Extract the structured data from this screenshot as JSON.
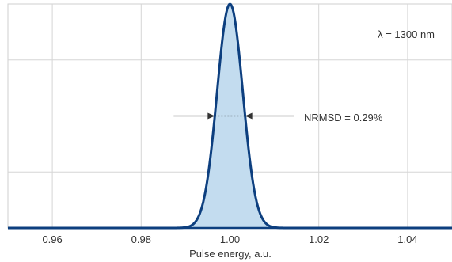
{
  "chart_data": {
    "type": "area",
    "title": "",
    "xlabel": "Pulse energy, a.u.",
    "ylabel": "",
    "xlim": [
      0.95,
      1.05
    ],
    "ylim": [
      0,
      1.0
    ],
    "xticks": [
      0.96,
      0.98,
      1.0,
      1.02,
      1.04
    ],
    "xtick_labels": [
      "0.96",
      "0.98",
      "1.00",
      "1.02",
      "1.04"
    ],
    "y_gridlines": [
      0.25,
      0.5,
      0.75
    ],
    "grid": true,
    "series": [
      {
        "peak_x": 1.0,
        "peak_y": 1.0,
        "sigma": 0.0029
      }
    ],
    "annotations": {
      "wavelength": "λ = 1300 nm",
      "nrmsd": "NRMSD = 0.29%"
    },
    "colors": {
      "line": "#0d3f7f",
      "fill": "#c3dcef",
      "grid": "#d6d6d6",
      "arrow": "#333333"
    }
  }
}
